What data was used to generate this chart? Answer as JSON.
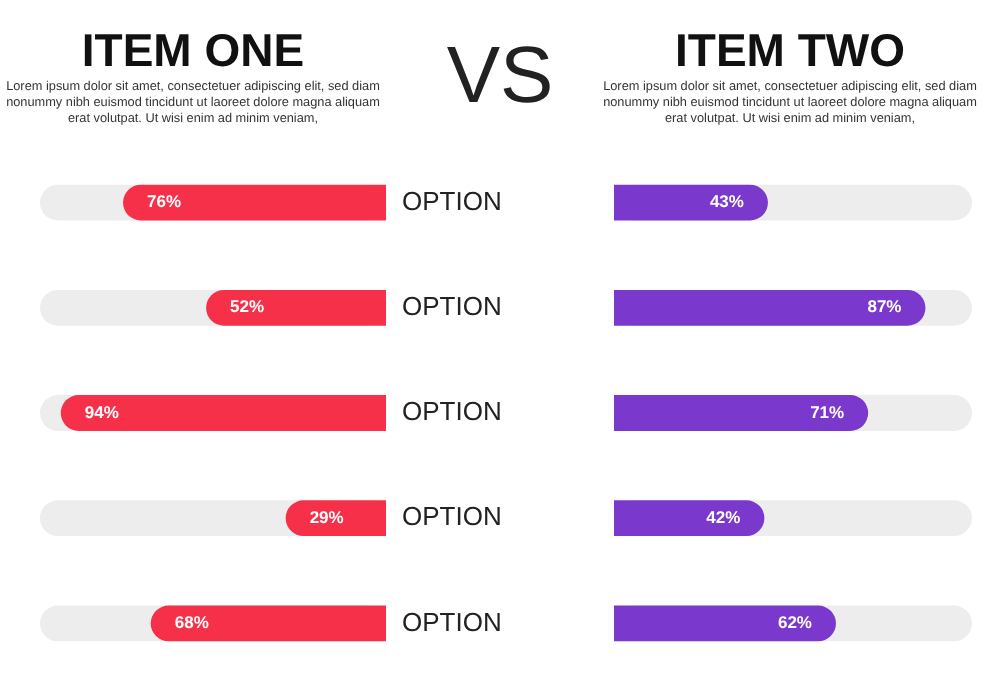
{
  "chart_data": [
    {
      "type": "bar",
      "orientation": "horizontal",
      "title": "ITEM ONE",
      "subtitle": "Lorem ipsum dolor sit amet, consectetuer adipiscing elit, sed diam nonummy nibh euismod tincidunt ut laoreet dolore magna aliquam erat volutpat. Ut wisi enim ad minim veniam,",
      "annotations": [
        "VS"
      ],
      "categories": [
        "OPTION",
        "OPTION",
        "OPTION",
        "OPTION",
        "OPTION"
      ],
      "values": [
        76,
        52,
        94,
        29,
        68
      ],
      "value_labels": [
        "76%",
        "52%",
        "94%",
        "29%",
        "68%"
      ],
      "color": "#f7304a",
      "xlim": [
        100,
        0
      ],
      "tick_labels": "y"
    },
    {
      "type": "bar",
      "orientation": "horizontal",
      "title": "ITEM TWO",
      "subtitle": "Lorem ipsum dolor sit amet, consectetuer adipiscing elit, sed diam nonummy nibh euismod tincidunt ut laoreet dolore magna aliquam erat volutpat. Ut wisi enim ad minim veniam,",
      "categories": [
        "OPTION",
        "OPTION",
        "OPTION",
        "OPTION",
        "OPTION"
      ],
      "values": [
        43,
        87,
        71,
        42,
        62
      ],
      "value_labels": [
        "43%",
        "87%",
        "71%",
        "42%",
        "62%"
      ],
      "color": "#7a38cc",
      "xlim": [
        0,
        100
      ],
      "tick_labels": false
    }
  ]
}
